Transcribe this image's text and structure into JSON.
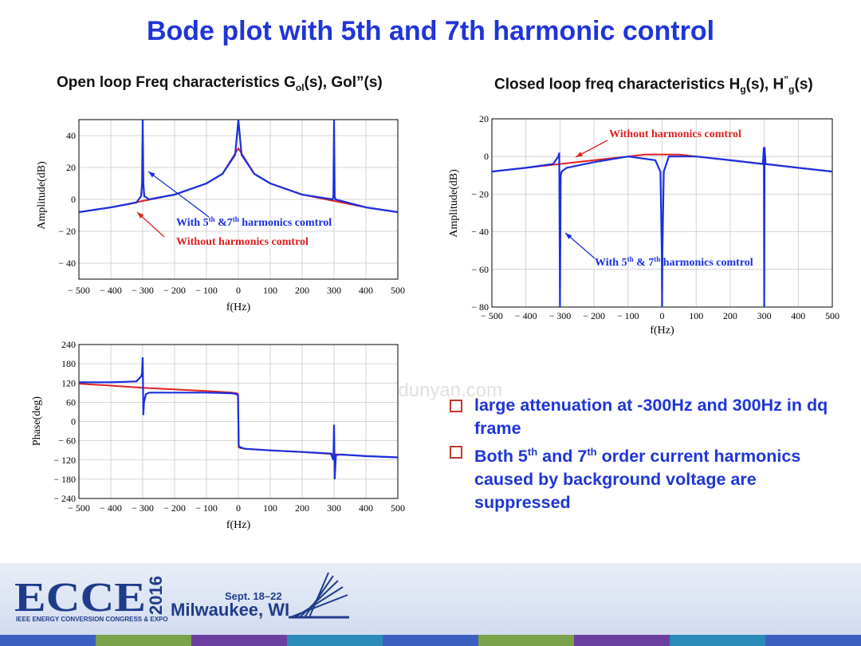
{
  "slide": {
    "title": "Bode plot with 5th and 7th harmonic control",
    "left_heading": "Open loop Freq characteristics  G",
    "left_heading_sub": "ol",
    "left_heading_tail": "(s), Gol”(s)",
    "right_heading": "Closed loop freq characteristics  H",
    "right_heading_sub": "g",
    "right_heading_mid": "(s), H",
    "right_heading_sup": "”",
    "right_heading_sub2": "g",
    "right_heading_tail": "(s)",
    "watermark": "www.niudunyan.com",
    "bullets": [
      {
        "text": "large attenuation at -300Hz and 300Hz in dq frame"
      },
      {
        "pre": "Both 5",
        "sup1": "th",
        "mid": " and 7",
        "sup2": "th",
        "post": " order current harmonics caused by background voltage are suppressed"
      }
    ],
    "footer": {
      "logo_text": "ECCE",
      "year": "2016",
      "org": "IEEE ENERGY CONVERSION CONGRESS & EXPO",
      "dates": "Sept. 18–22",
      "city": "Milwaukee, WI"
    },
    "colors": {
      "title": "#1f35d6",
      "with_control": "#1a2ee0",
      "without_control": "#e02020",
      "bullet_box": "#c0392b"
    }
  },
  "chart_data": [
    {
      "type": "line",
      "id": "open-amp",
      "xlabel": "f(Hz)",
      "ylabel": "Amplitude(dB)",
      "xlim": [
        -500,
        500
      ],
      "ylim": [
        -50,
        50
      ],
      "xticks": [
        -500,
        -400,
        -300,
        -200,
        -100,
        0,
        100,
        200,
        300,
        400,
        500
      ],
      "xtick_labels": [
        "− 500",
        "− 400",
        "− 300",
        "− 200",
        "− 100",
        "0",
        "100",
        "200",
        "300",
        "400",
        "500"
      ],
      "yticks": [
        40,
        20,
        0,
        -20,
        -40
      ],
      "ytick_labels": [
        "40",
        "20",
        "0",
        "− 20",
        "− 40"
      ],
      "grid": true,
      "annotations": [
        {
          "pre": "With 5",
          "sup1": "th",
          "mid": " &7",
          "sup2": "th",
          "post": " harmonics comtrol",
          "color": "blue"
        },
        {
          "text": "Without harmonics comtrol",
          "color": "red"
        }
      ],
      "series": [
        {
          "color": "red",
          "x": [
            -500,
            -400,
            -300,
            -200,
            -100,
            -50,
            0,
            50,
            100,
            200,
            300,
            400,
            500
          ],
          "y": [
            -8,
            -5,
            -1,
            3,
            10,
            16,
            32,
            16,
            10,
            3,
            -1,
            -5,
            -8
          ]
        },
        {
          "color": "blue",
          "x": [
            -500,
            -400,
            -320,
            -305,
            -302,
            -300,
            -298,
            -295,
            -280,
            -200,
            -100,
            -50,
            -10,
            0,
            10,
            50,
            100,
            200,
            296,
            298,
            300,
            302,
            304,
            400,
            500
          ],
          "y": [
            -8,
            -5,
            -2,
            2,
            10,
            50,
            10,
            2,
            0,
            3,
            10,
            16,
            28,
            50,
            28,
            16,
            10,
            3,
            0,
            2,
            50,
            2,
            0,
            -5,
            -8
          ]
        }
      ]
    },
    {
      "type": "line",
      "id": "open-phase",
      "xlabel": "f(Hz)",
      "ylabel": "Phase(deg)",
      "xlim": [
        -500,
        500
      ],
      "ylim": [
        -240,
        240
      ],
      "xticks": [
        -500,
        -400,
        -300,
        -200,
        -100,
        0,
        100,
        200,
        300,
        400,
        500
      ],
      "xtick_labels": [
        "− 500",
        "− 400",
        "− 300",
        "− 200",
        "− 100",
        "0",
        "100",
        "200",
        "300",
        "400",
        "500"
      ],
      "yticks": [
        240,
        180,
        120,
        60,
        0,
        -60,
        -120,
        -180,
        -240
      ],
      "ytick_labels": [
        "240",
        "180",
        "120",
        "60",
        "0",
        "− 60",
        "− 120",
        "− 180",
        "− 240"
      ],
      "grid": true,
      "series": [
        {
          "color": "red",
          "x": [
            -500,
            -400,
            -300,
            -200,
            -100,
            -20,
            -5,
            -1,
            1,
            5,
            20,
            100,
            200,
            300,
            400,
            500
          ],
          "y": [
            118,
            112,
            105,
            100,
            95,
            90,
            88,
            85,
            -80,
            -82,
            -85,
            -90,
            -95,
            -102,
            -108,
            -112
          ]
        },
        {
          "color": "blue",
          "x": [
            -500,
            -400,
            -320,
            -305,
            -302,
            -300,
            -298,
            -296,
            -290,
            -280,
            -200,
            -100,
            -20,
            -5,
            -1,
            1,
            5,
            20,
            100,
            200,
            290,
            298,
            300,
            302,
            306,
            320,
            400,
            500
          ],
          "y": [
            122,
            122,
            125,
            140,
            150,
            200,
            20,
            60,
            85,
            90,
            90,
            90,
            88,
            85,
            80,
            -75,
            -80,
            -85,
            -90,
            -95,
            -100,
            -120,
            -10,
            -180,
            -105,
            -103,
            -108,
            -112
          ]
        }
      ]
    },
    {
      "type": "line",
      "id": "closed-amp",
      "xlabel": "f(Hz)",
      "ylabel": "Amplitude(dB)",
      "xlim": [
        -500,
        500
      ],
      "ylim": [
        -80,
        20
      ],
      "xticks": [
        -500,
        -400,
        -300,
        -200,
        -100,
        0,
        100,
        200,
        300,
        400,
        500
      ],
      "xtick_labels": [
        "− 500",
        "− 400",
        "− 300",
        "− 200",
        "− 100",
        "0",
        "100",
        "200",
        "300",
        "400",
        "500"
      ],
      "yticks": [
        20,
        0,
        -20,
        -40,
        -60,
        -80
      ],
      "ytick_labels": [
        "20",
        "0",
        "− 20",
        "− 40",
        "− 60",
        "− 80"
      ],
      "grid": true,
      "annotations": [
        {
          "text": "Without harmonics comtrol",
          "color": "red"
        },
        {
          "pre": "With 5",
          "sup1": "th",
          "mid": " & 7",
          "sup2": "th",
          "post": " harmonics comtrol",
          "color": "blue"
        }
      ],
      "series": [
        {
          "color": "red",
          "x": [
            -500,
            -400,
            -300,
            -200,
            -100,
            -50,
            0,
            50,
            100,
            200,
            300,
            400,
            500
          ],
          "y": [
            -8,
            -6,
            -4,
            -2,
            0,
            1,
            1,
            1,
            0,
            -2,
            -4,
            -6,
            -8
          ]
        },
        {
          "color": "blue",
          "x": [
            -500,
            -400,
            -320,
            -305,
            -302,
            -300,
            -298,
            -295,
            -280,
            -200,
            -100,
            -20,
            -5,
            -1,
            0,
            1,
            5,
            20,
            100,
            200,
            296,
            299,
            300,
            301,
            304,
            400,
            500
          ],
          "y": [
            -8,
            -6,
            -4,
            0,
            2,
            -80,
            -10,
            -8,
            -6,
            -3,
            0,
            -2,
            -8,
            -50,
            -80,
            -50,
            -8,
            0,
            0,
            -2,
            -4,
            5,
            -80,
            5,
            -4,
            -6,
            -8
          ]
        }
      ]
    }
  ]
}
